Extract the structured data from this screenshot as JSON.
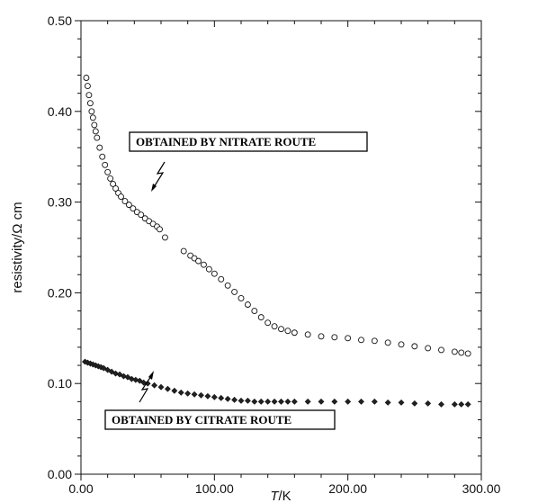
{
  "chart_data": {
    "type": "scatter",
    "xlabel_italic": "T",
    "xlabel_unit": "/K",
    "ylabel": "resistivity/Ω cm",
    "xlim": [
      0,
      300
    ],
    "ylim": [
      0,
      0.5
    ],
    "x_ticks": [
      "0.00",
      "100.00",
      "200.00",
      "300.00"
    ],
    "y_ticks": [
      "0.00",
      "0.10",
      "0.20",
      "0.30",
      "0.40",
      "0.50"
    ],
    "grid": false,
    "annotations": [
      {
        "text": "OBTAINED BY NITRATE ROUTE",
        "points_to": {
          "x": 47,
          "y": 0.285
        }
      },
      {
        "text": "OBTAINED BY CITRATE ROUTE",
        "points_to": {
          "x": 50,
          "y": 0.098
        }
      }
    ],
    "series": [
      {
        "marker": "open-circle",
        "x": [
          4,
          5,
          6,
          7,
          8,
          9,
          10,
          11,
          12,
          14,
          16,
          18,
          20,
          22,
          24,
          26,
          28,
          30,
          33,
          36,
          39,
          42,
          45,
          48,
          51,
          54,
          57,
          59,
          63,
          77,
          82,
          85,
          88,
          92,
          96,
          100,
          105,
          110,
          115,
          120,
          125,
          130,
          135,
          140,
          145,
          150,
          155,
          160,
          170,
          180,
          190,
          200,
          210,
          220,
          230,
          240,
          250,
          260,
          270,
          280,
          285,
          290
        ],
        "y": [
          0.437,
          0.428,
          0.418,
          0.409,
          0.4,
          0.393,
          0.385,
          0.378,
          0.371,
          0.36,
          0.35,
          0.341,
          0.333,
          0.326,
          0.32,
          0.315,
          0.31,
          0.306,
          0.301,
          0.297,
          0.293,
          0.289,
          0.286,
          0.282,
          0.279,
          0.276,
          0.273,
          0.27,
          0.261,
          0.246,
          0.241,
          0.238,
          0.235,
          0.231,
          0.226,
          0.221,
          0.215,
          0.208,
          0.201,
          0.194,
          0.187,
          0.18,
          0.173,
          0.167,
          0.163,
          0.16,
          0.158,
          0.156,
          0.154,
          0.152,
          0.151,
          0.15,
          0.148,
          0.147,
          0.145,
          0.143,
          0.141,
          0.139,
          0.137,
          0.135,
          0.134,
          0.133
        ]
      },
      {
        "marker": "filled-diamond",
        "x": [
          3,
          5,
          7,
          9,
          11,
          13,
          15,
          17,
          20,
          23,
          26,
          29,
          32,
          35,
          38,
          41,
          44,
          47,
          50,
          55,
          60,
          65,
          70,
          75,
          80,
          85,
          90,
          95,
          100,
          105,
          110,
          115,
          120,
          125,
          130,
          135,
          140,
          145,
          150,
          155,
          160,
          170,
          180,
          190,
          200,
          210,
          220,
          230,
          240,
          250,
          260,
          270,
          280,
          285,
          290
        ],
        "y": [
          0.124,
          0.123,
          0.122,
          0.121,
          0.12,
          0.119,
          0.118,
          0.117,
          0.115,
          0.113,
          0.111,
          0.11,
          0.108,
          0.107,
          0.105,
          0.104,
          0.103,
          0.101,
          0.1,
          0.098,
          0.096,
          0.094,
          0.092,
          0.09,
          0.089,
          0.088,
          0.087,
          0.086,
          0.085,
          0.084,
          0.083,
          0.082,
          0.081,
          0.081,
          0.08,
          0.08,
          0.08,
          0.08,
          0.08,
          0.08,
          0.08,
          0.08,
          0.08,
          0.08,
          0.08,
          0.08,
          0.08,
          0.079,
          0.079,
          0.078,
          0.078,
          0.077,
          0.077,
          0.077,
          0.077
        ]
      }
    ]
  }
}
